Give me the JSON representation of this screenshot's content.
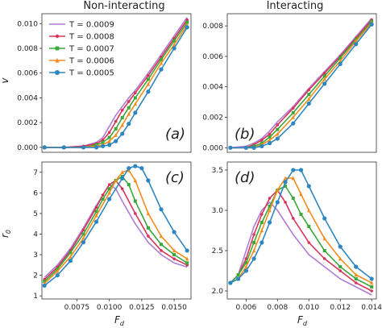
{
  "columns": {
    "left_title": "Non-interacting",
    "right_title": "Interacting"
  },
  "axis_labels": {
    "v": "v",
    "F": "F",
    "F_sub": "d",
    "r": "r",
    "r_sub": "0"
  },
  "legend": [
    {
      "label": "T = 0.0009",
      "color": "#b07cd6"
    },
    {
      "label": "T = 0.0008",
      "color": "#d6345a"
    },
    {
      "label": "T = 0.0007",
      "color": "#3aa83a"
    },
    {
      "label": "T = 0.0006",
      "color": "#f28c1c"
    },
    {
      "label": "T = 0.0005",
      "color": "#2e86c1"
    }
  ],
  "chart_data": [
    {
      "panel": "(a)",
      "type": "line",
      "column": "Non-interacting",
      "xlim": [
        0.0048,
        0.0163
      ],
      "ylim": [
        -0.0004,
        0.0108
      ],
      "x_ticks": [],
      "y_ticks": [
        0.0,
        0.002,
        0.004,
        0.006,
        0.008,
        0.01
      ],
      "y_tick_labels": [
        "0.000",
        "0.002",
        "0.004",
        "0.006",
        "0.008",
        "0.010"
      ],
      "series": [
        {
          "name": "T = 0.0009",
          "x": [
            0.005,
            0.0065,
            0.008,
            0.009,
            0.0095,
            0.01,
            0.0105,
            0.011,
            0.0115,
            0.012,
            0.013,
            0.014,
            0.015,
            0.016
          ],
          "y": [
            0.0,
            0.0,
            0.0001,
            0.0004,
            0.0008,
            0.0017,
            0.0026,
            0.0033,
            0.004,
            0.0046,
            0.006,
            0.0075,
            0.009,
            0.0105
          ]
        },
        {
          "name": "T = 0.0008",
          "x": [
            0.005,
            0.0065,
            0.008,
            0.009,
            0.0095,
            0.01,
            0.0105,
            0.011,
            0.0115,
            0.012,
            0.013,
            0.014,
            0.015,
            0.016
          ],
          "y": [
            0.0,
            0.0,
            0.0001,
            0.0003,
            0.0006,
            0.0012,
            0.0021,
            0.003,
            0.0037,
            0.0044,
            0.0058,
            0.0073,
            0.0088,
            0.0103
          ]
        },
        {
          "name": "T = 0.0007",
          "x": [
            0.005,
            0.0065,
            0.008,
            0.009,
            0.0095,
            0.01,
            0.0105,
            0.011,
            0.0115,
            0.012,
            0.013,
            0.014,
            0.015,
            0.016
          ],
          "y": [
            0.0,
            0.0,
            0.0,
            0.0002,
            0.0004,
            0.0008,
            0.0015,
            0.0024,
            0.0032,
            0.004,
            0.0055,
            0.0071,
            0.0086,
            0.0101
          ]
        },
        {
          "name": "T = 0.0006",
          "x": [
            0.005,
            0.0065,
            0.008,
            0.009,
            0.0095,
            0.01,
            0.0105,
            0.011,
            0.0115,
            0.012,
            0.013,
            0.014,
            0.015,
            0.016
          ],
          "y": [
            0.0,
            0.0,
            0.0,
            0.0001,
            0.0002,
            0.0005,
            0.001,
            0.0018,
            0.0027,
            0.0035,
            0.0051,
            0.0068,
            0.0083,
            0.0099
          ]
        },
        {
          "name": "T = 0.0005",
          "x": [
            0.005,
            0.0065,
            0.008,
            0.009,
            0.0095,
            0.01,
            0.0105,
            0.011,
            0.0115,
            0.012,
            0.013,
            0.014,
            0.015,
            0.016
          ],
          "y": [
            0.0,
            0.0,
            0.0,
            0.0,
            0.0001,
            0.0002,
            0.0005,
            0.0011,
            0.0019,
            0.0028,
            0.0045,
            0.0063,
            0.008,
            0.0097
          ]
        }
      ]
    },
    {
      "panel": "(b)",
      "type": "line",
      "column": "Interacting",
      "xlim": [
        0.0048,
        0.0143
      ],
      "ylim": [
        -0.0003,
        0.0088
      ],
      "x_ticks": [],
      "y_ticks": [
        0.0,
        0.002,
        0.004,
        0.006,
        0.008
      ],
      "y_tick_labels": [
        "0.000",
        "0.002",
        "0.004",
        "0.006",
        "0.008"
      ],
      "series": [
        {
          "name": "T = 0.0009",
          "x": [
            0.005,
            0.006,
            0.0065,
            0.007,
            0.0075,
            0.008,
            0.009,
            0.01,
            0.011,
            0.012,
            0.013,
            0.014
          ],
          "y": [
            0.0,
            0.0001,
            0.0003,
            0.0006,
            0.0011,
            0.0017,
            0.0027,
            0.0039,
            0.005,
            0.0061,
            0.0073,
            0.0085
          ]
        },
        {
          "name": "T = 0.0008",
          "x": [
            0.005,
            0.006,
            0.0065,
            0.007,
            0.0075,
            0.008,
            0.009,
            0.01,
            0.011,
            0.012,
            0.013,
            0.014
          ],
          "y": [
            0.0,
            0.0,
            0.0002,
            0.0005,
            0.0009,
            0.0015,
            0.0026,
            0.0038,
            0.0049,
            0.006,
            0.0072,
            0.0084
          ]
        },
        {
          "name": "T = 0.0007",
          "x": [
            0.005,
            0.006,
            0.0065,
            0.007,
            0.0075,
            0.008,
            0.009,
            0.01,
            0.011,
            0.012,
            0.013,
            0.014
          ],
          "y": [
            0.0,
            0.0,
            0.0001,
            0.0003,
            0.0007,
            0.0012,
            0.0023,
            0.0035,
            0.0047,
            0.0059,
            0.0071,
            0.0083
          ]
        },
        {
          "name": "T = 0.0006",
          "x": [
            0.005,
            0.006,
            0.0065,
            0.007,
            0.0075,
            0.008,
            0.009,
            0.01,
            0.011,
            0.012,
            0.013,
            0.014
          ],
          "y": [
            0.0,
            0.0,
            0.0,
            0.0002,
            0.0005,
            0.0009,
            0.002,
            0.0032,
            0.0045,
            0.0057,
            0.007,
            0.0082
          ]
        },
        {
          "name": "T = 0.0005",
          "x": [
            0.005,
            0.006,
            0.0065,
            0.007,
            0.0075,
            0.008,
            0.009,
            0.01,
            0.011,
            0.012,
            0.013,
            0.014
          ],
          "y": [
            0.0,
            0.0,
            0.0,
            0.0001,
            0.0003,
            0.0006,
            0.0016,
            0.0029,
            0.0042,
            0.0055,
            0.0068,
            0.0081
          ]
        }
      ]
    },
    {
      "panel": "(c)",
      "type": "line",
      "column": "Non-interacting",
      "xlim": [
        0.0048,
        0.0163
      ],
      "ylim": [
        0.85,
        7.5
      ],
      "x_ticks": [
        0.0075,
        0.01,
        0.0125,
        0.015
      ],
      "x_tick_labels": [
        "0.0075",
        "0.0100",
        "0.0125",
        "0.0150"
      ],
      "y_ticks": [
        1,
        2,
        3,
        4,
        5,
        6,
        7
      ],
      "y_tick_labels": [
        "1",
        "2",
        "3",
        "4",
        "5",
        "6",
        "7"
      ],
      "xlabel": "F_d",
      "ylabel": "r_0",
      "series": [
        {
          "name": "T = 0.0009",
          "x": [
            0.005,
            0.006,
            0.007,
            0.008,
            0.009,
            0.0095,
            0.01,
            0.0105,
            0.011,
            0.012,
            0.013,
            0.014,
            0.015,
            0.016
          ],
          "y": [
            1.9,
            2.5,
            3.3,
            4.3,
            5.4,
            5.9,
            6.4,
            6.2,
            5.6,
            4.5,
            3.6,
            3.0,
            2.6,
            2.4
          ]
        },
        {
          "name": "T = 0.0008",
          "x": [
            0.005,
            0.006,
            0.007,
            0.008,
            0.009,
            0.0095,
            0.01,
            0.0105,
            0.011,
            0.012,
            0.013,
            0.014,
            0.015,
            0.016
          ],
          "y": [
            1.8,
            2.4,
            3.2,
            4.2,
            5.3,
            5.9,
            6.4,
            6.6,
            6.2,
            5.0,
            3.9,
            3.2,
            2.8,
            2.5
          ]
        },
        {
          "name": "T = 0.0007",
          "x": [
            0.005,
            0.006,
            0.007,
            0.008,
            0.009,
            0.0095,
            0.01,
            0.0105,
            0.011,
            0.0115,
            0.012,
            0.013,
            0.014,
            0.015,
            0.016
          ],
          "y": [
            1.7,
            2.3,
            3.1,
            4.0,
            5.1,
            5.7,
            6.2,
            6.6,
            6.8,
            6.4,
            5.6,
            4.3,
            3.5,
            3.0,
            2.6
          ]
        },
        {
          "name": "T = 0.0006",
          "x": [
            0.005,
            0.006,
            0.007,
            0.008,
            0.009,
            0.01,
            0.0105,
            0.011,
            0.0115,
            0.012,
            0.013,
            0.014,
            0.015,
            0.016
          ],
          "y": [
            1.6,
            2.2,
            2.9,
            3.8,
            4.9,
            6.0,
            6.6,
            7.0,
            7.1,
            6.6,
            5.0,
            3.9,
            3.2,
            2.8
          ]
        },
        {
          "name": "T = 0.0005",
          "x": [
            0.005,
            0.006,
            0.007,
            0.008,
            0.009,
            0.01,
            0.011,
            0.0115,
            0.012,
            0.0125,
            0.013,
            0.014,
            0.015,
            0.016
          ],
          "y": [
            1.5,
            2.0,
            2.7,
            3.6,
            4.6,
            5.7,
            6.7,
            7.2,
            7.3,
            7.2,
            6.6,
            5.2,
            4.1,
            3.2
          ]
        }
      ]
    },
    {
      "panel": "(d)",
      "type": "line",
      "column": "Interacting",
      "xlim": [
        0.0048,
        0.0143
      ],
      "ylim": [
        1.9,
        3.6
      ],
      "x_ticks": [
        0.006,
        0.008,
        0.01,
        0.012,
        0.014
      ],
      "x_tick_labels": [
        "0.006",
        "0.008",
        "0.010",
        "0.012",
        "0.014"
      ],
      "y_ticks": [
        2.0,
        2.5,
        3.0,
        3.5
      ],
      "y_tick_labels": [
        "2.0",
        "2.5",
        "3.0",
        "3.5"
      ],
      "xlabel": "F_d",
      "series": [
        {
          "name": "T = 0.0009",
          "x": [
            0.005,
            0.0055,
            0.006,
            0.0065,
            0.007,
            0.0075,
            0.008,
            0.0085,
            0.009,
            0.01,
            0.011,
            0.012,
            0.013,
            0.014
          ],
          "y": [
            2.1,
            2.2,
            2.5,
            2.8,
            3.0,
            3.1,
            3.0,
            2.85,
            2.7,
            2.45,
            2.3,
            2.15,
            2.05,
            1.95
          ]
        },
        {
          "name": "T = 0.0008",
          "x": [
            0.005,
            0.0055,
            0.006,
            0.0065,
            0.007,
            0.0075,
            0.008,
            0.0085,
            0.009,
            0.01,
            0.011,
            0.012,
            0.013,
            0.014
          ],
          "y": [
            2.1,
            2.2,
            2.4,
            2.7,
            2.95,
            3.15,
            3.25,
            3.1,
            2.9,
            2.6,
            2.4,
            2.25,
            2.1,
            2.0
          ]
        },
        {
          "name": "T = 0.0007",
          "x": [
            0.005,
            0.0055,
            0.006,
            0.0065,
            0.007,
            0.0075,
            0.008,
            0.0085,
            0.009,
            0.0095,
            0.01,
            0.011,
            0.012,
            0.013,
            0.014
          ],
          "y": [
            2.1,
            2.2,
            2.35,
            2.6,
            2.85,
            3.05,
            3.25,
            3.3,
            3.15,
            2.95,
            2.8,
            2.5,
            2.3,
            2.15,
            2.05
          ]
        },
        {
          "name": "T = 0.0006",
          "x": [
            0.005,
            0.0055,
            0.006,
            0.0065,
            0.007,
            0.0075,
            0.008,
            0.0085,
            0.009,
            0.0095,
            0.01,
            0.011,
            0.012,
            0.013,
            0.014
          ],
          "y": [
            2.1,
            2.15,
            2.3,
            2.5,
            2.75,
            3.0,
            3.25,
            3.4,
            3.4,
            3.2,
            3.0,
            2.65,
            2.4,
            2.2,
            2.1
          ]
        },
        {
          "name": "T = 0.0005",
          "x": [
            0.005,
            0.0055,
            0.006,
            0.0065,
            0.007,
            0.0075,
            0.008,
            0.0085,
            0.009,
            0.0095,
            0.01,
            0.011,
            0.012,
            0.013,
            0.014
          ],
          "y": [
            2.1,
            2.15,
            2.25,
            2.4,
            2.6,
            2.85,
            3.1,
            3.35,
            3.5,
            3.5,
            3.3,
            2.9,
            2.55,
            2.3,
            2.15
          ]
        }
      ]
    }
  ]
}
